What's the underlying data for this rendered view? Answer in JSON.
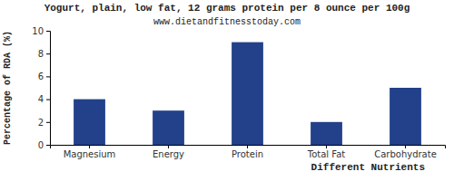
{
  "chart_data": {
    "type": "bar",
    "title": "Yogurt, plain, low fat, 12 grams protein per 8 ounce per 100g",
    "subtitle": "www.dietandfitnesstoday.com",
    "x_label": "Different Nutrients",
    "y_label": "Percentage of RDA (%)",
    "categories": [
      "Magnesium",
      "Energy",
      "Protein",
      "Total Fat",
      "Carbohydrate"
    ],
    "values": [
      4,
      3,
      9,
      2,
      5
    ],
    "color": "#22418a",
    "ylim": [
      0,
      10
    ],
    "yticks": [
      0,
      2,
      4,
      6,
      8,
      10
    ],
    "grid": false
  }
}
